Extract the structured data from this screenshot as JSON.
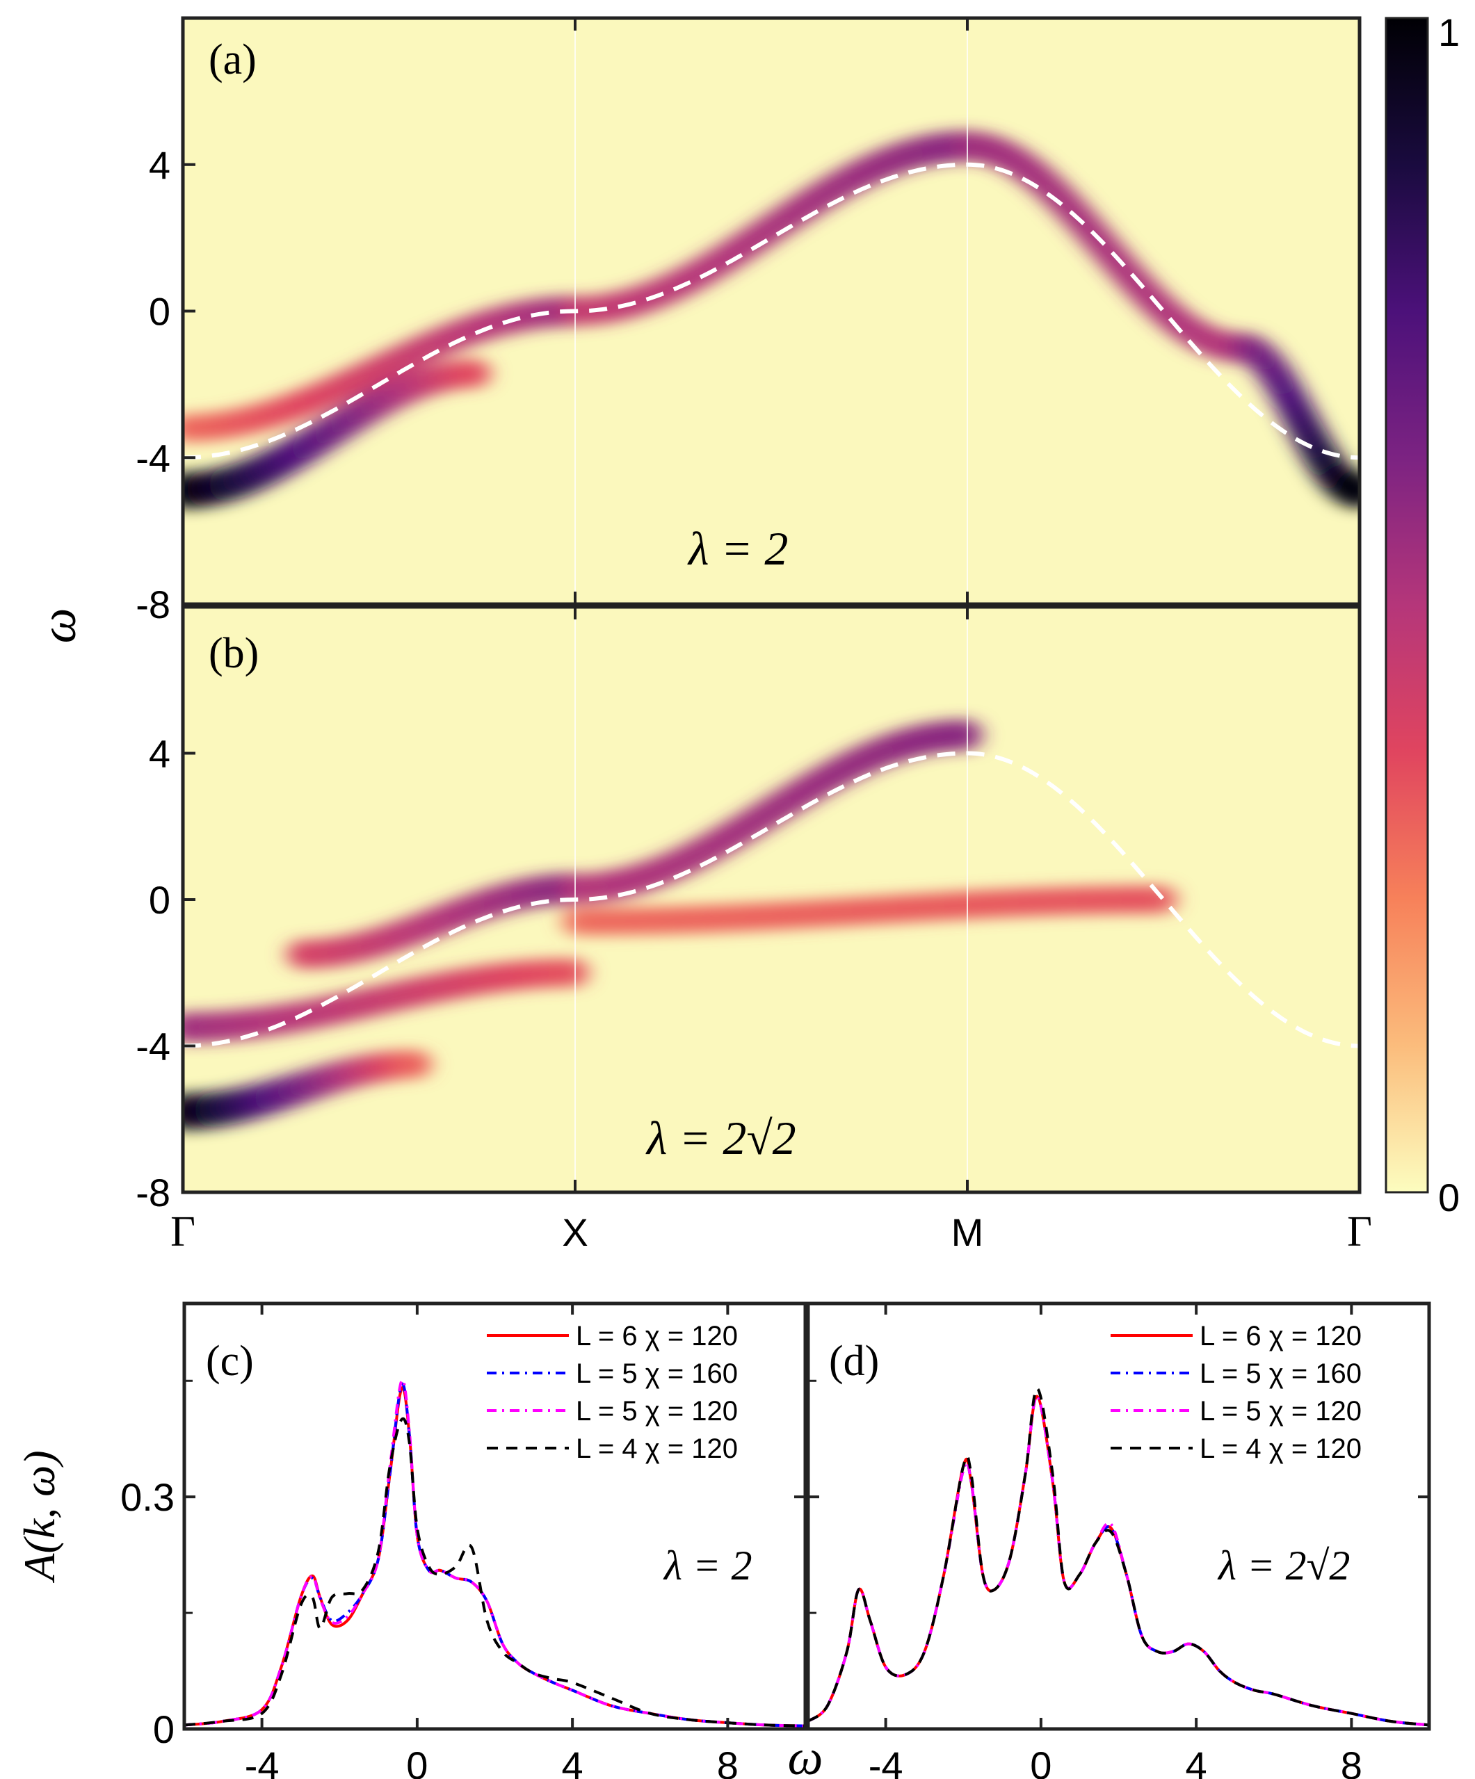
{
  "colorbar": {
    "min_label": "0",
    "max_label": "1",
    "colormap": [
      "#fcfdbf",
      "#fbbc7c",
      "#f7815a",
      "#e0455f",
      "#b5367a",
      "#7c2382",
      "#4c117a",
      "#1a0b3f",
      "#000004"
    ]
  },
  "chart_data": [
    {
      "panel": "(a)",
      "type": "heatmap",
      "annotation": "λ = 2",
      "ylabel": "ω",
      "ylim": [
        -8,
        8
      ],
      "yticks": [
        "4",
        "0",
        "-4",
        "-8"
      ],
      "xticks": [
        "Γ",
        "X",
        "M",
        "Γ"
      ],
      "dashed_curve": {
        "path": [
          "Γ",
          "X",
          "M",
          "Γ"
        ],
        "y_at_Γ": -4,
        "y_at_X": 0,
        "y_at_M": 4
      },
      "bands": [
        {
          "y_start": -4.9,
          "y_end": -1.7,
          "x_start": 0.0,
          "x_end": 0.75,
          "intensity_start": 1.0,
          "intensity_end": 0.35
        },
        {
          "y_start": -3.2,
          "y_end": 0.0,
          "x_start": 0.0,
          "x_end": 1.0,
          "intensity_start": 0.3,
          "intensity_end": 0.55
        },
        {
          "y_start": 0.0,
          "y_end": 4.5,
          "x_start": 1.0,
          "x_end": 2.0,
          "intensity_start": 0.45,
          "intensity_end": 0.6
        },
        {
          "y_start": 4.5,
          "y_end": -1.0,
          "x_start": 2.0,
          "x_end": 2.7,
          "intensity_start": 0.55,
          "intensity_end": 0.5
        },
        {
          "y_start": -1.0,
          "y_end": -4.9,
          "x_start": 2.7,
          "x_end": 3.0,
          "intensity_start": 0.55,
          "intensity_end": 1.0
        }
      ]
    },
    {
      "panel": "(b)",
      "type": "heatmap",
      "annotation": "λ = 2√2",
      "ylabel": "ω",
      "ylim": [
        -8,
        8
      ],
      "yticks": [
        "-8",
        "4",
        "0",
        "-4",
        "-8"
      ],
      "xticks": [
        "Γ",
        "X",
        "M",
        "Γ"
      ],
      "dashed_curve": {
        "path": [
          "Γ",
          "X",
          "M",
          "Γ"
        ],
        "y_at_Γ": -4,
        "y_at_X": 0,
        "y_at_M": 4
      },
      "bands": [
        {
          "y_start": -5.8,
          "y_end": -4.5,
          "x_start": 0.0,
          "x_end": 0.6,
          "intensity_start": 1.0,
          "intensity_end": 0.3
        },
        {
          "y_start": -3.5,
          "y_end": -2.0,
          "x_start": 0.0,
          "x_end": 1.0,
          "intensity_start": 0.55,
          "intensity_end": 0.35
        },
        {
          "y_start": -1.5,
          "y_end": 0.3,
          "x_start": 0.3,
          "x_end": 1.0,
          "intensity_start": 0.4,
          "intensity_end": 0.6
        },
        {
          "y_start": 0.3,
          "y_end": 4.5,
          "x_start": 1.0,
          "x_end": 2.0,
          "intensity_start": 0.5,
          "intensity_end": 0.6
        },
        {
          "y_start": -0.6,
          "y_end": 0.0,
          "x_start": 1.0,
          "x_end": 2.5,
          "intensity_start": 0.3,
          "intensity_end": 0.35
        }
      ]
    },
    {
      "panel": "(c)",
      "type": "line",
      "annotation": "λ = 2",
      "xlabel": "ω",
      "ylabel": "A(k, ω)",
      "xlim": [
        -6,
        10
      ],
      "ylim": [
        0,
        0.55
      ],
      "xticks": [
        "-4",
        "0",
        "4",
        "8"
      ],
      "yticks": [
        "0",
        "0.3"
      ],
      "series": [
        {
          "name": "L = 6 χ = 120",
          "color": "#ff0000",
          "dash": "solid",
          "x": [
            -6,
            -5,
            -4,
            -3.5,
            -3.0,
            -2.7,
            -2.5,
            -2.2,
            -1.8,
            -1.4,
            -1.0,
            -0.7,
            -0.4,
            -0.2,
            0.0,
            0.3,
            0.6,
            1.0,
            1.4,
            1.8,
            2.2,
            2.6,
            3.0,
            3.5,
            4.0,
            5.0,
            6.0,
            7.0,
            8.0,
            9.0,
            10.0
          ],
          "y": [
            0.005,
            0.01,
            0.025,
            0.08,
            0.17,
            0.198,
            0.17,
            0.135,
            0.14,
            0.175,
            0.22,
            0.33,
            0.44,
            0.38,
            0.25,
            0.205,
            0.205,
            0.195,
            0.19,
            0.165,
            0.11,
            0.085,
            0.072,
            0.06,
            0.05,
            0.03,
            0.02,
            0.012,
            0.008,
            0.005,
            0.004
          ]
        },
        {
          "name": "L = 5 χ = 160",
          "color": "#0000ff",
          "dash": "dash-dot",
          "x": [
            -6,
            -5,
            -4,
            -3.5,
            -3.0,
            -2.7,
            -2.5,
            -2.2,
            -1.8,
            -1.4,
            -1.0,
            -0.7,
            -0.4,
            -0.2,
            0.0,
            0.3,
            0.6,
            1.0,
            1.4,
            1.8,
            2.2,
            2.6,
            3.0,
            3.5,
            4.0,
            5.0,
            6.0,
            7.0,
            8.0,
            9.0,
            10.0
          ],
          "y": [
            0.005,
            0.01,
            0.025,
            0.08,
            0.17,
            0.195,
            0.17,
            0.14,
            0.15,
            0.175,
            0.22,
            0.33,
            0.445,
            0.38,
            0.25,
            0.205,
            0.205,
            0.195,
            0.19,
            0.165,
            0.11,
            0.085,
            0.072,
            0.06,
            0.05,
            0.03,
            0.02,
            0.012,
            0.008,
            0.005,
            0.004
          ]
        },
        {
          "name": "L = 5 χ = 120",
          "color": "#ff00ff",
          "dash": "dash-dot",
          "x": [
            -6,
            -5,
            -4,
            -3.5,
            -3.0,
            -2.7,
            -2.5,
            -2.2,
            -1.8,
            -1.4,
            -1.0,
            -0.7,
            -0.4,
            -0.2,
            0.0,
            0.3,
            0.6,
            1.0,
            1.4,
            1.8,
            2.2,
            2.6,
            3.0,
            3.5,
            4.0,
            5.0,
            6.0,
            7.0,
            8.0,
            9.0,
            10.0
          ],
          "y": [
            0.005,
            0.01,
            0.025,
            0.08,
            0.17,
            0.197,
            0.168,
            0.138,
            0.145,
            0.175,
            0.22,
            0.34,
            0.45,
            0.385,
            0.25,
            0.205,
            0.205,
            0.195,
            0.19,
            0.165,
            0.11,
            0.085,
            0.072,
            0.06,
            0.05,
            0.03,
            0.02,
            0.012,
            0.008,
            0.005,
            0.004
          ]
        },
        {
          "name": "L = 4 χ = 120",
          "color": "#000000",
          "dash": "dashed",
          "x": [
            -6,
            -5,
            -4,
            -3.5,
            -3.0,
            -2.7,
            -2.5,
            -2.2,
            -1.8,
            -1.4,
            -1.0,
            -0.7,
            -0.4,
            -0.2,
            0.0,
            0.3,
            0.6,
            1.0,
            1.4,
            1.8,
            2.2,
            2.6,
            3.0,
            3.5,
            4.0,
            5.0,
            6.0,
            7.0,
            8.0,
            9.0,
            10.0
          ],
          "y": [
            0.005,
            0.01,
            0.02,
            0.07,
            0.16,
            0.17,
            0.13,
            0.17,
            0.175,
            0.18,
            0.23,
            0.34,
            0.4,
            0.37,
            0.26,
            0.21,
            0.2,
            0.21,
            0.235,
            0.14,
            0.1,
            0.085,
            0.072,
            0.065,
            0.06,
            0.04,
            0.02,
            0.012,
            0.008,
            0.005,
            0.004
          ]
        }
      ]
    },
    {
      "panel": "(d)",
      "type": "line",
      "annotation": "λ = 2√2",
      "xlabel": "ω",
      "xlim": [
        -6,
        10
      ],
      "ylim": [
        0,
        0.55
      ],
      "xticks": [
        "-4",
        "0",
        "4",
        "8"
      ],
      "series": [
        {
          "name": "L = 6 χ = 120",
          "color": "#ff0000",
          "dash": "solid",
          "x": [
            -6,
            -5.5,
            -5.0,
            -4.7,
            -4.4,
            -4.0,
            -3.5,
            -3.0,
            -2.5,
            -2.0,
            -1.8,
            -1.5,
            -1.2,
            -0.8,
            -0.4,
            -0.1,
            0.3,
            0.6,
            1.0,
            1.4,
            1.8,
            2.2,
            2.6,
            3.0,
            3.4,
            3.8,
            4.2,
            4.6,
            5.0,
            5.5,
            6.0,
            7.0,
            8.0,
            9.0,
            10.0
          ],
          "y": [
            0.01,
            0.03,
            0.1,
            0.18,
            0.14,
            0.08,
            0.07,
            0.1,
            0.2,
            0.34,
            0.32,
            0.2,
            0.18,
            0.22,
            0.33,
            0.43,
            0.32,
            0.19,
            0.2,
            0.24,
            0.26,
            0.2,
            0.12,
            0.1,
            0.1,
            0.11,
            0.1,
            0.075,
            0.06,
            0.05,
            0.045,
            0.03,
            0.02,
            0.01,
            0.005
          ]
        },
        {
          "name": "L = 5 χ = 160",
          "color": "#0000ff",
          "dash": "dash-dot",
          "x": [
            -6,
            -5.5,
            -5.0,
            -4.7,
            -4.4,
            -4.0,
            -3.5,
            -3.0,
            -2.5,
            -2.0,
            -1.8,
            -1.5,
            -1.2,
            -0.8,
            -0.4,
            -0.1,
            0.3,
            0.6,
            1.0,
            1.4,
            1.8,
            2.2,
            2.6,
            3.0,
            3.4,
            3.8,
            4.2,
            4.6,
            5.0,
            5.5,
            6.0,
            7.0,
            8.0,
            9.0,
            10.0
          ],
          "y": [
            0.01,
            0.03,
            0.1,
            0.18,
            0.14,
            0.08,
            0.07,
            0.1,
            0.2,
            0.335,
            0.32,
            0.2,
            0.18,
            0.22,
            0.33,
            0.43,
            0.32,
            0.19,
            0.2,
            0.24,
            0.26,
            0.2,
            0.12,
            0.1,
            0.1,
            0.11,
            0.1,
            0.075,
            0.06,
            0.05,
            0.045,
            0.03,
            0.02,
            0.01,
            0.005
          ]
        },
        {
          "name": "L = 5 χ = 120",
          "color": "#ff00ff",
          "dash": "dash-dot",
          "x": [
            -6,
            -5.5,
            -5.0,
            -4.7,
            -4.4,
            -4.0,
            -3.5,
            -3.0,
            -2.5,
            -2.0,
            -1.8,
            -1.5,
            -1.2,
            -0.8,
            -0.4,
            -0.1,
            0.3,
            0.6,
            1.0,
            1.4,
            1.8,
            2.2,
            2.6,
            3.0,
            3.4,
            3.8,
            4.2,
            4.6,
            5.0,
            5.5,
            6.0,
            7.0,
            8.0,
            9.0,
            10.0
          ],
          "y": [
            0.01,
            0.03,
            0.1,
            0.18,
            0.14,
            0.08,
            0.07,
            0.1,
            0.2,
            0.335,
            0.32,
            0.2,
            0.18,
            0.22,
            0.33,
            0.43,
            0.32,
            0.19,
            0.2,
            0.24,
            0.265,
            0.2,
            0.12,
            0.1,
            0.1,
            0.11,
            0.1,
            0.075,
            0.06,
            0.05,
            0.045,
            0.03,
            0.02,
            0.01,
            0.005
          ]
        },
        {
          "name": "L = 4 χ = 120",
          "color": "#000000",
          "dash": "dashed",
          "x": [
            -6,
            -5.5,
            -5.0,
            -4.7,
            -4.4,
            -4.0,
            -3.5,
            -3.0,
            -2.5,
            -2.0,
            -1.8,
            -1.5,
            -1.2,
            -0.8,
            -0.4,
            -0.1,
            0.3,
            0.6,
            1.0,
            1.4,
            1.8,
            2.2,
            2.6,
            3.0,
            3.4,
            3.8,
            4.2,
            4.6,
            5.0,
            5.5,
            6.0,
            7.0,
            8.0,
            9.0,
            10.0
          ],
          "y": [
            0.01,
            0.03,
            0.1,
            0.18,
            0.14,
            0.08,
            0.07,
            0.1,
            0.2,
            0.34,
            0.33,
            0.2,
            0.18,
            0.22,
            0.33,
            0.44,
            0.33,
            0.19,
            0.2,
            0.24,
            0.255,
            0.2,
            0.12,
            0.1,
            0.1,
            0.11,
            0.1,
            0.075,
            0.06,
            0.05,
            0.045,
            0.03,
            0.02,
            0.01,
            0.005
          ]
        }
      ]
    }
  ]
}
